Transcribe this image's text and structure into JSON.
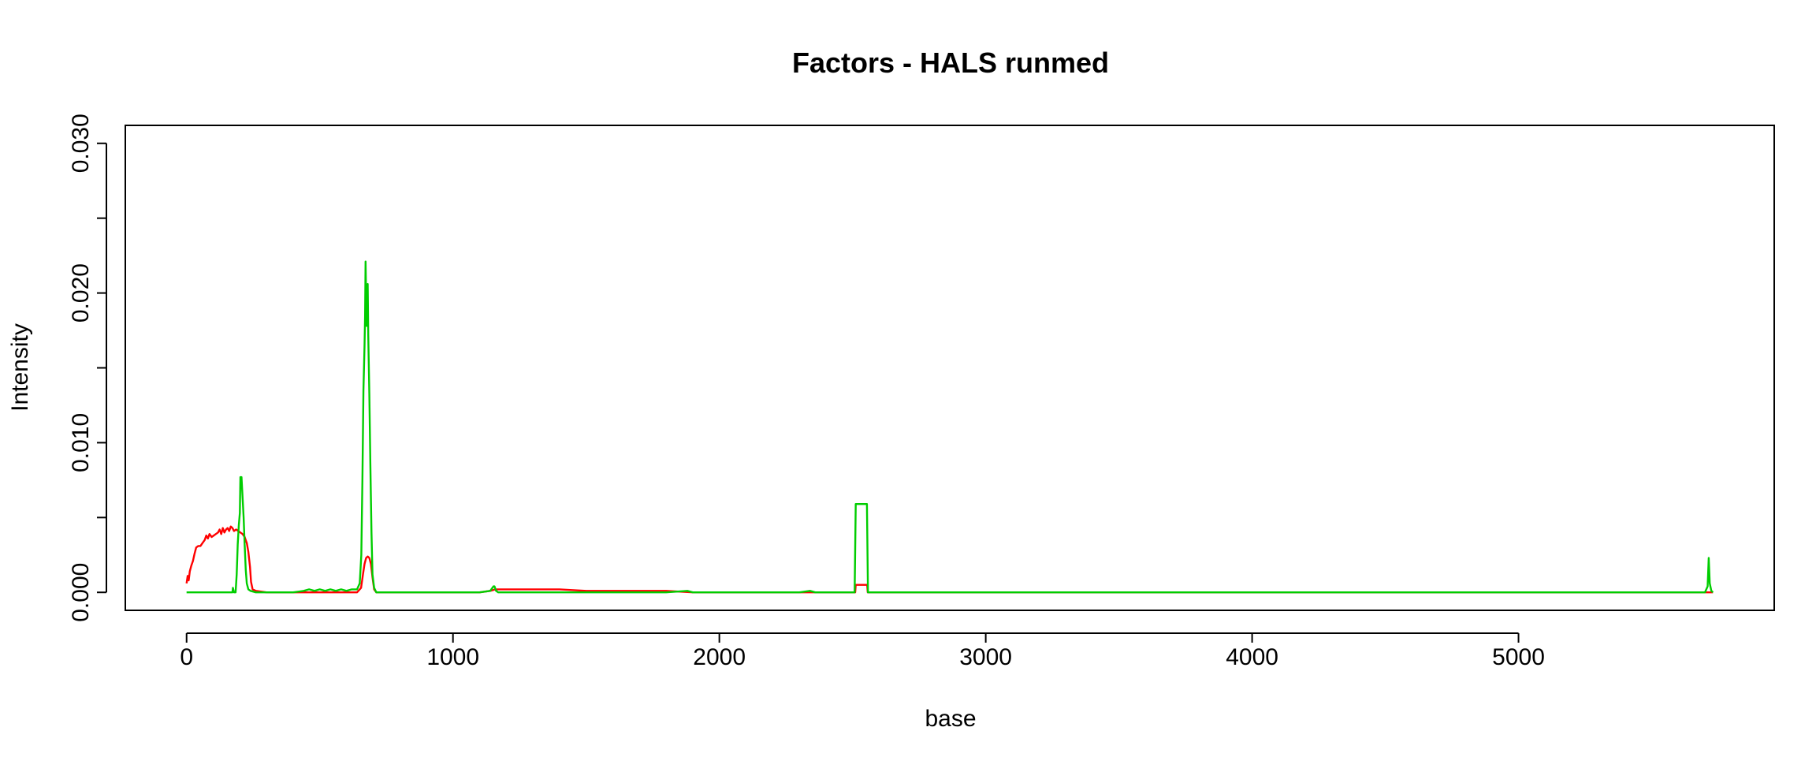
{
  "chart_data": {
    "type": "line",
    "title": "Factors - HALS runmed",
    "xlabel": "base",
    "ylabel": "Intensity",
    "xlim": [
      -230,
      5960
    ],
    "ylim": [
      -0.0012,
      0.0312
    ],
    "x_ticks": [
      0,
      1000,
      2000,
      3000,
      4000,
      5000
    ],
    "x_tick_labels": [
      "0",
      "1000",
      "2000",
      "3000",
      "4000",
      "5000"
    ],
    "y_ticks": [
      0.0,
      0.005,
      0.01,
      0.015,
      0.02,
      0.025,
      0.03
    ],
    "y_tick_labels": [
      "0.000",
      "",
      "0.010",
      "",
      "0.020",
      "",
      "0.030"
    ],
    "grid": false,
    "legend": "none",
    "series": [
      {
        "color": "#ff0000",
        "points": [
          [
            0,
            0.0006
          ],
          [
            4,
            0.0011
          ],
          [
            8,
            0.0008
          ],
          [
            12,
            0.0014
          ],
          [
            18,
            0.0018
          ],
          [
            24,
            0.0021
          ],
          [
            30,
            0.0026
          ],
          [
            36,
            0.003
          ],
          [
            44,
            0.0031
          ],
          [
            52,
            0.0031
          ],
          [
            60,
            0.0033
          ],
          [
            68,
            0.0035
          ],
          [
            74,
            0.0038
          ],
          [
            80,
            0.0036
          ],
          [
            86,
            0.0039
          ],
          [
            94,
            0.0037
          ],
          [
            102,
            0.0038
          ],
          [
            110,
            0.0039
          ],
          [
            118,
            0.004
          ],
          [
            124,
            0.0042
          ],
          [
            130,
            0.0039
          ],
          [
            136,
            0.0043
          ],
          [
            142,
            0.004
          ],
          [
            148,
            0.0042
          ],
          [
            154,
            0.0043
          ],
          [
            160,
            0.0041
          ],
          [
            166,
            0.0044
          ],
          [
            172,
            0.0043
          ],
          [
            178,
            0.0041
          ],
          [
            186,
            0.0042
          ],
          [
            194,
            0.0041
          ],
          [
            202,
            0.004
          ],
          [
            210,
            0.0039
          ],
          [
            218,
            0.0037
          ],
          [
            226,
            0.0033
          ],
          [
            232,
            0.0027
          ],
          [
            238,
            0.0017
          ],
          [
            242,
            0.0007
          ],
          [
            248,
            0.0002
          ],
          [
            260,
            0.0001
          ],
          [
            300,
            0.0
          ],
          [
            420,
            0.0
          ],
          [
            600,
            0.0
          ],
          [
            640,
            0.0
          ],
          [
            655,
            0.0003
          ],
          [
            662,
            0.0012
          ],
          [
            668,
            0.0019
          ],
          [
            674,
            0.0023
          ],
          [
            680,
            0.0024
          ],
          [
            686,
            0.0023
          ],
          [
            692,
            0.0019
          ],
          [
            698,
            0.001
          ],
          [
            704,
            0.0002
          ],
          [
            712,
            0.0
          ],
          [
            800,
            0.0
          ],
          [
            1000,
            0.0
          ],
          [
            1100,
            0.0
          ],
          [
            1140,
            0.0001
          ],
          [
            1160,
            0.0002
          ],
          [
            1200,
            0.0002
          ],
          [
            1300,
            0.0002
          ],
          [
            1400,
            0.0002
          ],
          [
            1500,
            0.0001
          ],
          [
            1600,
            0.0001
          ],
          [
            1700,
            0.0001
          ],
          [
            1800,
            0.0001
          ],
          [
            1900,
            0.0
          ],
          [
            2000,
            0.0
          ],
          [
            2300,
            0.0
          ],
          [
            2510,
            0.0
          ],
          [
            2512,
            0.0005
          ],
          [
            2555,
            0.0005
          ],
          [
            2557,
            0.0
          ],
          [
            3000,
            0.0
          ],
          [
            4000,
            0.0
          ],
          [
            5000,
            0.0
          ],
          [
            5730,
            0.0
          ]
        ]
      },
      {
        "color": "#00cd00",
        "points": [
          [
            0,
            0.0
          ],
          [
            100,
            0.0
          ],
          [
            172,
            0.0
          ],
          [
            174,
            0.0003
          ],
          [
            178,
            0.0
          ],
          [
            184,
            0.0
          ],
          [
            188,
            0.0012
          ],
          [
            192,
            0.0032
          ],
          [
            196,
            0.0045
          ],
          [
            200,
            0.0053
          ],
          [
            202,
            0.0077
          ],
          [
            206,
            0.0077
          ],
          [
            210,
            0.0064
          ],
          [
            214,
            0.005
          ],
          [
            218,
            0.0032
          ],
          [
            222,
            0.0015
          ],
          [
            226,
            0.0006
          ],
          [
            232,
            0.0002
          ],
          [
            240,
            0.0001
          ],
          [
            260,
            0.0
          ],
          [
            400,
            0.0
          ],
          [
            440,
            0.0001
          ],
          [
            460,
            0.0002
          ],
          [
            480,
            0.0001
          ],
          [
            500,
            0.0002
          ],
          [
            520,
            0.0001
          ],
          [
            540,
            0.0002
          ],
          [
            560,
            0.0001
          ],
          [
            580,
            0.0002
          ],
          [
            600,
            0.0001
          ],
          [
            620,
            0.0002
          ],
          [
            640,
            0.0002
          ],
          [
            650,
            0.0006
          ],
          [
            656,
            0.0025
          ],
          [
            660,
            0.0075
          ],
          [
            664,
            0.0135
          ],
          [
            668,
            0.0165
          ],
          [
            670,
            0.0185
          ],
          [
            672,
            0.0221
          ],
          [
            674,
            0.0198
          ],
          [
            676,
            0.0178
          ],
          [
            678,
            0.0205
          ],
          [
            680,
            0.0206
          ],
          [
            682,
            0.0172
          ],
          [
            686,
            0.0132
          ],
          [
            690,
            0.0085
          ],
          [
            694,
            0.004
          ],
          [
            698,
            0.0012
          ],
          [
            704,
            0.0003
          ],
          [
            712,
            0.0
          ],
          [
            800,
            0.0
          ],
          [
            1000,
            0.0
          ],
          [
            1100,
            0.0
          ],
          [
            1140,
            0.0001
          ],
          [
            1152,
            0.0004
          ],
          [
            1156,
            0.0004
          ],
          [
            1162,
            0.0001
          ],
          [
            1170,
            0.0
          ],
          [
            1400,
            0.0
          ],
          [
            1600,
            0.0
          ],
          [
            1800,
            0.0
          ],
          [
            1880,
            0.0001
          ],
          [
            1900,
            0.0
          ],
          [
            2300,
            0.0
          ],
          [
            2340,
            0.0001
          ],
          [
            2360,
            0.0
          ],
          [
            2508,
            0.0
          ],
          [
            2512,
            0.0059
          ],
          [
            2554,
            0.0059
          ],
          [
            2558,
            0.0
          ],
          [
            3000,
            0.0
          ],
          [
            4000,
            0.0
          ],
          [
            5000,
            0.0
          ],
          [
            5700,
            0.0
          ],
          [
            5710,
            0.0004
          ],
          [
            5714,
            0.0023
          ],
          [
            5718,
            0.0006
          ],
          [
            5724,
            0.0001
          ],
          [
            5730,
            0.0
          ]
        ]
      }
    ]
  }
}
